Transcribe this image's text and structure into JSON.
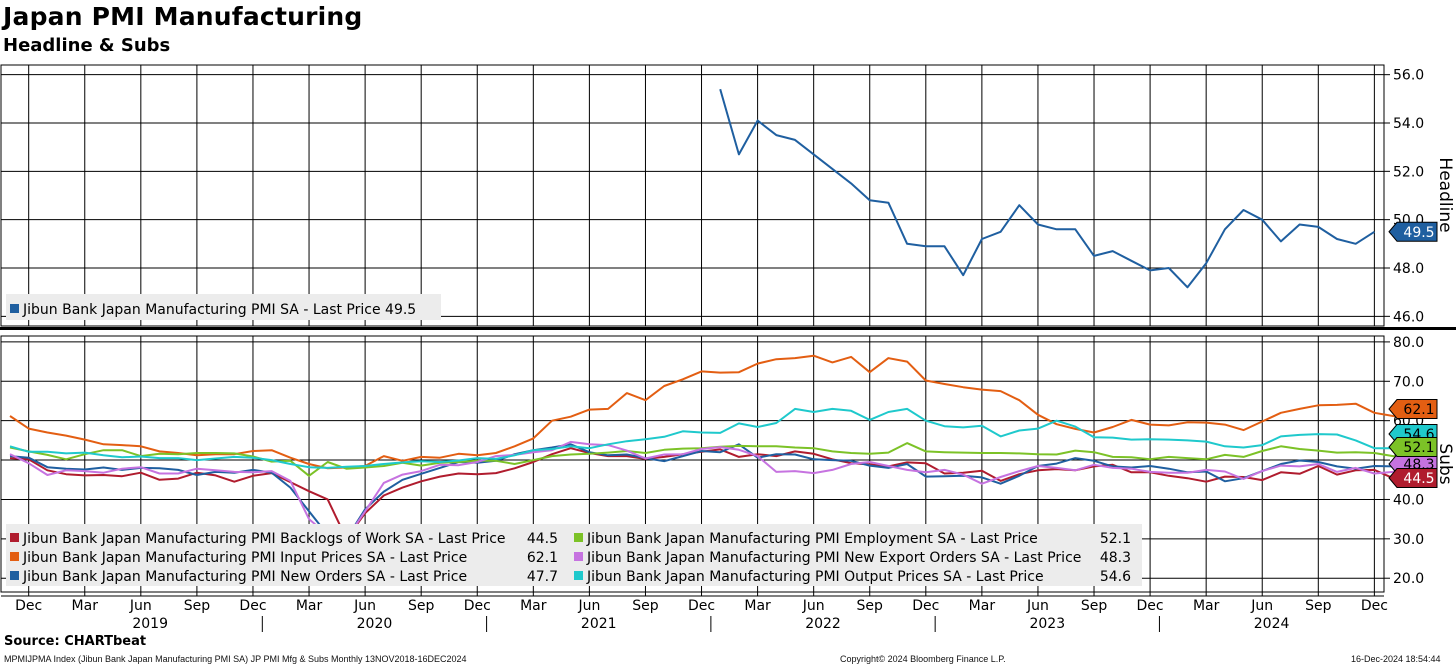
{
  "header": {
    "title": "Japan PMI Manufacturing",
    "subtitle": "Headline & Subs"
  },
  "footer": {
    "source": "Source: CHARTbeat",
    "index_info": "MPMIJPMA Index (Jibun Bank Japan Manufacturing PMI SA) JP PMI Mfg & Subs  Monthly 13NOV2018-16DEC2024",
    "copyright": "Copyright© 2024 Bloomberg Finance L.P.",
    "timestamp": "16-Dec-2024 18:54:44"
  },
  "chart_data": [
    {
      "type": "line",
      "title": "Headline",
      "ylabel": "Headline",
      "ylim": [
        45.6,
        56.4
      ],
      "yticks": [
        "56.0",
        "54.0",
        "52.0",
        "50.0",
        "48.0",
        "46.0"
      ],
      "grid": true,
      "start_month": "2022-01",
      "series": [
        {
          "name": "Jibun Bank Japan Manufacturing PMI SA - Last Price",
          "last_value": "49.5",
          "color": "#1f5fa0",
          "values": [
            55.4,
            52.7,
            54.1,
            53.5,
            53.3,
            52.7,
            52.1,
            51.5,
            50.8,
            50.7,
            49.0,
            48.9,
            48.9,
            47.7,
            49.2,
            49.5,
            50.6,
            49.8,
            49.6,
            49.6,
            48.5,
            48.7,
            48.3,
            47.9,
            48.0,
            47.2,
            48.2,
            49.6,
            50.4,
            50.0,
            49.1,
            49.8,
            49.7,
            49.2,
            49.0,
            49.5
          ]
        }
      ]
    },
    {
      "type": "line",
      "title": "Subs",
      "ylabel": "Subs",
      "ylim": [
        16.5,
        81.5
      ],
      "yticks": [
        "80.0",
        "70.0",
        "60.0",
        "50.0",
        "40.0",
        "30.0",
        "20.0"
      ],
      "grid": true,
      "start_month": "2018-11",
      "x_axis": {
        "month_labels": [
          "Dec",
          "Mar",
          "Jun",
          "Sep"
        ],
        "years": [
          "2019",
          "2020",
          "2021",
          "2022",
          "2023",
          "2024"
        ]
      },
      "series": [
        {
          "name": "Jibun Bank Japan Manufacturing PMI Backlogs of Work SA - Last Price",
          "last_value": "44.5",
          "color": "#b01c2e",
          "values": [
            50.5,
            50.2,
            47.4,
            46.4,
            46.1,
            46.2,
            45.9,
            46.8,
            45.0,
            45.3,
            46.8,
            46.1,
            44.5,
            46.0,
            46.7,
            44.4,
            42.1,
            40.0,
            30.0,
            36.5,
            41.0,
            43.0,
            44.6,
            45.8,
            46.6,
            46.4,
            46.7,
            47.9,
            49.5,
            51.5,
            53.0,
            51.8,
            51.0,
            51.0,
            50.3,
            50.8,
            51.5,
            52.1,
            52.7,
            50.8,
            51.5,
            51.0,
            52.2,
            51.6,
            50.2,
            49.2,
            48.9,
            48.4,
            49.4,
            49.2,
            46.6,
            46.8,
            47.3,
            44.7,
            46.4,
            47.4,
            47.7,
            47.4,
            48.4,
            48.8,
            46.9,
            46.9,
            46.0,
            45.4,
            44.5,
            45.8,
            45.7,
            44.9,
            46.9,
            46.5,
            48.5,
            46.3,
            47.4,
            47.5,
            45.4,
            45.5,
            44.5
          ]
        },
        {
          "name": "Jibun Bank Japan Manufacturing PMI Input Prices SA - Last Price",
          "last_value": "62.1",
          "color": "#e35e12",
          "values": [
            61.2,
            58.0,
            57.0,
            56.2,
            55.2,
            54.0,
            53.8,
            53.5,
            52.2,
            51.8,
            51.2,
            51.5,
            51.5,
            52.3,
            52.5,
            50.6,
            49.0,
            47.9,
            48.1,
            48.5,
            51.0,
            49.8,
            50.8,
            50.6,
            51.6,
            51.2,
            51.8,
            53.5,
            55.5,
            60.0,
            61.0,
            62.8,
            63.0,
            67.0,
            65.2,
            68.8,
            70.5,
            72.5,
            72.2,
            72.3,
            74.5,
            75.6,
            75.9,
            76.5,
            74.8,
            76.2,
            72.3,
            75.9,
            75.0,
            70.2,
            69.3,
            68.5,
            67.9,
            67.5,
            65.2,
            61.5,
            59.1,
            57.9,
            57.0,
            58.4,
            60.2,
            59.0,
            58.8,
            59.6,
            59.5,
            59.0,
            57.6,
            59.8,
            62.0,
            63.0,
            63.9,
            64.0,
            64.3,
            62.0,
            61.2,
            60.8,
            62.1
          ]
        },
        {
          "name": "Jibun Bank Japan Manufacturing PMI New Orders SA - Last Price",
          "last_value": "47.7",
          "color": "#1f5fa0",
          "values": [
            51.0,
            50.6,
            48.2,
            47.8,
            47.6,
            48.1,
            47.5,
            48.0,
            47.9,
            47.5,
            46.2,
            47.0,
            46.8,
            47.5,
            46.8,
            43.0,
            37.0,
            31.0,
            30.0,
            37.5,
            42.0,
            45.0,
            46.5,
            48.0,
            49.5,
            49.3,
            49.8,
            51.5,
            52.5,
            53.2,
            54.0,
            52.0,
            51.2,
            51.4,
            50.5,
            49.7,
            51.0,
            52.3,
            52.0,
            54.0,
            50.6,
            51.5,
            51.4,
            50.2,
            50.0,
            49.8,
            48.6,
            48.0,
            49.0,
            45.8,
            45.9,
            46.0,
            45.6,
            44.0,
            46.0,
            48.5,
            49.1,
            50.5,
            49.8,
            48.4,
            48.1,
            48.5,
            47.8,
            46.9,
            47.1,
            44.6,
            45.4,
            47.2,
            49.0,
            49.9,
            49.5,
            48.4,
            47.8,
            48.5,
            48.4,
            47.9,
            47.7
          ]
        },
        {
          "name": "Jibun Bank Japan Manufacturing PMI Employment SA - Last Price",
          "last_value": "52.1",
          "color": "#7cc227",
          "values": [
            53.2,
            52.2,
            51.3,
            50.2,
            51.5,
            52.5,
            52.5,
            51.0,
            51.6,
            51.5,
            51.8,
            51.8,
            51.7,
            50.9,
            49.6,
            49.8,
            46.0,
            49.5,
            47.8,
            48.1,
            48.5,
            49.3,
            48.6,
            49.3,
            49.5,
            49.8,
            49.8,
            49.0,
            50.0,
            51.0,
            51.4,
            51.6,
            51.9,
            52.3,
            51.8,
            52.6,
            52.9,
            53.0,
            53.4,
            53.6,
            53.5,
            53.5,
            53.2,
            53.0,
            52.2,
            51.8,
            51.6,
            51.9,
            54.3,
            52.2,
            52.0,
            51.9,
            51.8,
            51.8,
            51.7,
            51.5,
            51.4,
            52.4,
            52.0,
            50.8,
            50.7,
            50.2,
            50.8,
            50.5,
            50.2,
            51.3,
            50.8,
            52.3,
            53.5,
            52.8,
            52.4,
            51.9,
            52.0,
            51.8,
            51.0,
            50.3,
            52.1
          ]
        },
        {
          "name": "Jibun Bank Japan Manufacturing PMI New Export Orders SA - Last Price",
          "last_value": "48.3",
          "color": "#c673e0",
          "values": [
            51.5,
            49.2,
            46.2,
            47.4,
            47.2,
            46.8,
            47.8,
            48.2,
            46.6,
            46.6,
            47.8,
            47.4,
            47.0,
            46.9,
            47.2,
            44.7,
            35.0,
            31.0,
            30.0,
            37.0,
            44.2,
            46.3,
            47.2,
            48.8,
            48.7,
            49.5,
            51.0,
            51.3,
            52.0,
            52.5,
            54.6,
            54.0,
            53.8,
            52.4,
            50.4,
            51.4,
            51.5,
            52.8,
            53.3,
            52.6,
            51.0,
            47.0,
            47.2,
            46.7,
            47.5,
            49.0,
            49.5,
            48.5,
            47.5,
            46.9,
            47.5,
            46.3,
            44.0,
            45.7,
            47.2,
            48.5,
            48.0,
            47.4,
            48.8,
            48.0,
            47.8,
            47.0,
            46.8,
            46.8,
            47.5,
            47.1,
            45.2,
            47.2,
            48.6,
            48.4,
            49.0,
            47.0,
            48.0,
            46.6,
            47.0,
            48.9,
            48.3
          ]
        },
        {
          "name": "Jibun Bank Japan Manufacturing PMI Output Prices SA - Last Price",
          "last_value": "54.6",
          "color": "#1fc9cc",
          "values": [
            53.5,
            52.1,
            52.1,
            51.7,
            51.9,
            51.2,
            50.7,
            50.9,
            50.5,
            50.5,
            50.0,
            50.4,
            50.8,
            50.6,
            50.0,
            49.0,
            48.2,
            48.0,
            48.3,
            48.5,
            49.0,
            49.4,
            49.7,
            49.5,
            49.9,
            50.5,
            50.3,
            51.2,
            52.5,
            52.8,
            53.5,
            53.0,
            54.0,
            54.8,
            55.3,
            55.9,
            57.3,
            57.0,
            56.9,
            59.3,
            58.4,
            59.4,
            63.0,
            62.2,
            63.0,
            62.5,
            60.2,
            62.2,
            63.0,
            60.0,
            58.6,
            58.3,
            58.7,
            56.0,
            57.5,
            58.0,
            60.0,
            58.5,
            55.8,
            55.7,
            55.2,
            55.3,
            55.2,
            55.0,
            54.7,
            53.5,
            53.2,
            53.8,
            56.0,
            56.4,
            56.6,
            56.5,
            55.0,
            53.0,
            53.0,
            54.0,
            54.6
          ]
        }
      ]
    }
  ]
}
